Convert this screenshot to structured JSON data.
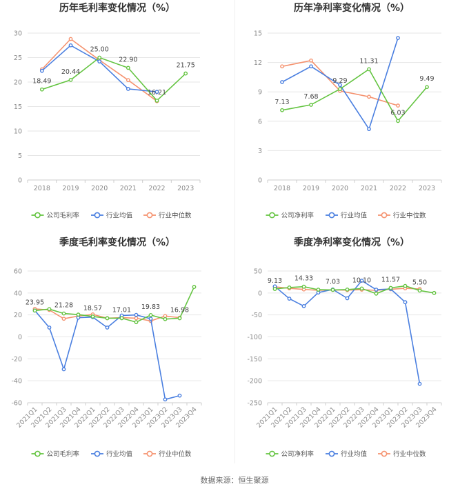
{
  "source": "数据来源：恒生聚源",
  "colors": {
    "company": "#64c441",
    "industry_avg": "#4a7fe0",
    "industry_median": "#f5926f"
  },
  "chart_data": [
    {
      "type": "line",
      "title": "历年毛利率变化情况（%）",
      "categories": [
        "2018",
        "2019",
        "2020",
        "2021",
        "2022",
        "2023"
      ],
      "ylim": [
        0,
        30
      ],
      "yticks": [
        0,
        5,
        10,
        15,
        20,
        25,
        30
      ],
      "rotate_x": false,
      "series": [
        {
          "name": "公司毛利率",
          "key": "company",
          "values": [
            18.49,
            20.44,
            25.0,
            22.9,
            16.21,
            21.75
          ],
          "labels": [
            "18.49",
            "20.44",
            "25.00",
            "22.90",
            "16.21",
            "21.75"
          ]
        },
        {
          "name": "行业均值",
          "key": "industry_avg",
          "values": [
            22.3,
            27.5,
            24.2,
            18.6,
            18.0,
            null
          ]
        },
        {
          "name": "行业中位数",
          "key": "industry_median",
          "values": [
            22.6,
            28.8,
            24.5,
            20.4,
            16.1,
            null
          ]
        }
      ]
    },
    {
      "type": "line",
      "title": "历年净利率变化情况（%）",
      "categories": [
        "2018",
        "2019",
        "2020",
        "2021",
        "2022",
        "2023"
      ],
      "ylim": [
        0,
        15
      ],
      "yticks": [
        0,
        3,
        6,
        9,
        12,
        15
      ],
      "rotate_x": false,
      "series": [
        {
          "name": "公司净利率",
          "key": "company",
          "values": [
            7.13,
            7.68,
            9.29,
            11.31,
            6.03,
            9.49
          ],
          "labels": [
            "7.13",
            "7.68",
            "9.29",
            "11.31",
            "6.03",
            "9.49"
          ]
        },
        {
          "name": "行业均值",
          "key": "industry_avg",
          "values": [
            10.0,
            11.6,
            9.7,
            5.2,
            14.5,
            null
          ]
        },
        {
          "name": "行业中位数",
          "key": "industry_median",
          "values": [
            11.6,
            12.2,
            9.1,
            8.5,
            7.6,
            null
          ]
        }
      ]
    },
    {
      "type": "line",
      "title": "季度毛利率变化情况（%）",
      "categories": [
        "2021Q1",
        "2021Q2",
        "2021Q3",
        "2021Q4",
        "2022Q1",
        "2022Q2",
        "2022Q3",
        "2022Q4",
        "2023Q1",
        "2023Q2",
        "2023Q3",
        "2023Q4"
      ],
      "ylim": [
        -60,
        60
      ],
      "yticks": [
        -60,
        -40,
        -20,
        0,
        20,
        40,
        60
      ],
      "rotate_x": true,
      "series": [
        {
          "name": "公司毛利率",
          "key": "company",
          "values": [
            23.95,
            25.3,
            21.28,
            20.3,
            18.57,
            17.0,
            17.01,
            13.4,
            19.83,
            16.2,
            16.98,
            45.5
          ],
          "labels": [
            "23.95",
            null,
            "21.28",
            null,
            "18.57",
            null,
            "17.01",
            null,
            "19.83",
            null,
            "16.98",
            null
          ]
        },
        {
          "name": "行业均值",
          "key": "industry_avg",
          "values": [
            24.0,
            8.5,
            -29.5,
            17.5,
            18.0,
            8.5,
            19.5,
            20.0,
            16.5,
            -57.0,
            -53.5,
            null
          ]
        },
        {
          "name": "行业中位数",
          "key": "industry_median",
          "values": [
            25.5,
            24.5,
            16.5,
            19.0,
            20.5,
            17.0,
            17.5,
            17.0,
            14.5,
            19.0,
            17.5,
            null
          ]
        }
      ]
    },
    {
      "type": "line",
      "title": "季度净利率变化情况（%）",
      "categories": [
        "2021Q1",
        "2021Q2",
        "2021Q3",
        "2021Q4",
        "2022Q1",
        "2022Q2",
        "2022Q3",
        "2022Q4",
        "2023Q1",
        "2023Q2",
        "2023Q3",
        "2023Q4"
      ],
      "ylim": [
        -250,
        50
      ],
      "yticks": [
        -250,
        -200,
        -150,
        -100,
        -50,
        0,
        50
      ],
      "rotate_x": true,
      "series": [
        {
          "name": "公司净利率",
          "key": "company",
          "values": [
            9.13,
            12.5,
            14.33,
            7.5,
            7.03,
            7.8,
            10.1,
            -1.5,
            11.57,
            16.0,
            5.5,
            0.0
          ],
          "labels": [
            "9.13",
            null,
            "14.33",
            null,
            "7.03",
            null,
            "10.10",
            null,
            "11.57",
            null,
            "5.50",
            null
          ]
        },
        {
          "name": "行业均值",
          "key": "industry_avg",
          "values": [
            15.0,
            -13.0,
            -30.0,
            1.0,
            8.0,
            -12.0,
            28.0,
            7.5,
            9.0,
            -21.0,
            -207.0,
            null
          ]
        },
        {
          "name": "行业中位数",
          "key": "industry_median",
          "values": [
            14.0,
            10.5,
            8.0,
            6.0,
            7.0,
            6.5,
            7.5,
            6.0,
            8.5,
            10.5,
            9.0,
            null
          ]
        }
      ]
    }
  ]
}
